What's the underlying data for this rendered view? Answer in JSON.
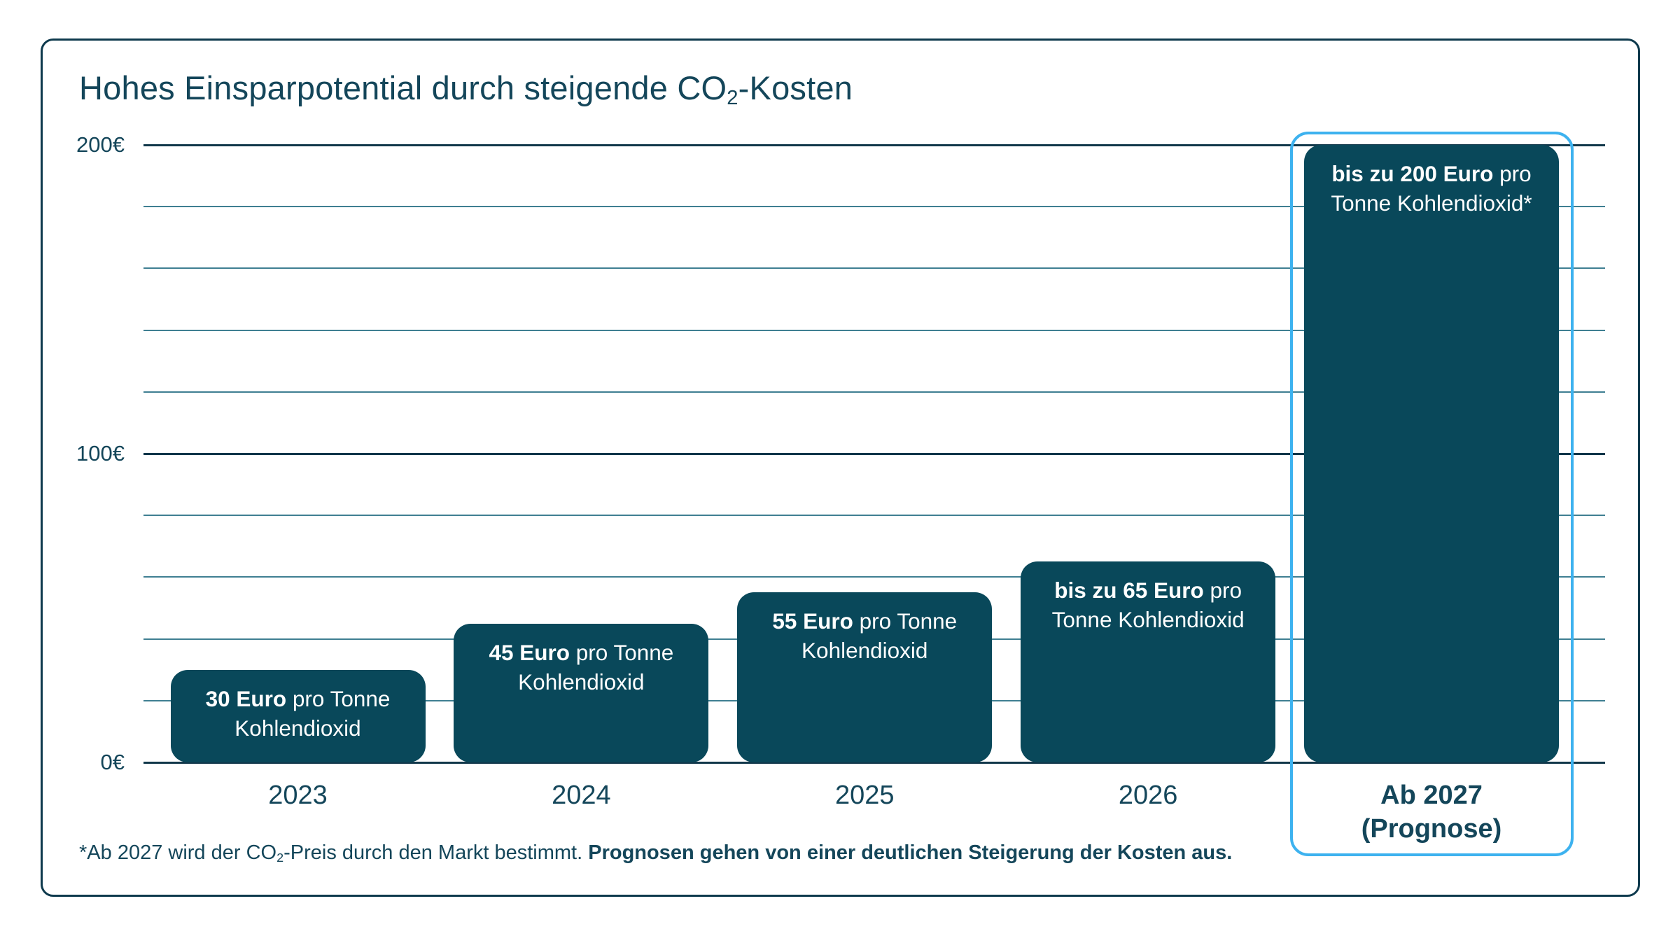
{
  "title": {
    "text_before_sub": "Hohes Einsparpotential durch steigende CO",
    "sub": "2",
    "text_after_sub": "-Kosten"
  },
  "chart_data": {
    "type": "bar",
    "categories": [
      "2023",
      "2024",
      "2025",
      "2026",
      "Ab 2027\n(Prognose)"
    ],
    "values": [
      30,
      45,
      55,
      65,
      200
    ],
    "bar_labels": [
      {
        "bold": "30 Euro",
        "rest": " pro Tonne Kohlendioxid"
      },
      {
        "bold": "45 Euro",
        "rest": " pro Tonne Kohlendioxid"
      },
      {
        "bold": "55 Euro",
        "rest": " pro Tonne Kohlendioxid"
      },
      {
        "bold": "bis zu 65 Euro",
        "rest": " pro Tonne Kohlendioxid"
      },
      {
        "bold": "bis zu 200 Euro",
        "rest": " pro Tonne Kohlendioxid*"
      }
    ],
    "ylim": [
      0,
      200
    ],
    "gridline_step": 20,
    "yticks": [
      {
        "value": 0,
        "label": "0€"
      },
      {
        "value": 100,
        "label": "100€"
      },
      {
        "value": 200,
        "label": "200€"
      }
    ],
    "highlight_index": 4,
    "grid": true,
    "legend": false,
    "xlabel": "",
    "ylabel": ""
  },
  "footnote": {
    "text_before_sub": "*Ab 2027 wird der CO",
    "sub": "2",
    "text_after_sub": "-Preis durch den Markt bestimmt. ",
    "bold_text": "Prognosen gehen von einer deutlichen Steigerung der Kosten aus."
  },
  "colors": {
    "bar_fill": "#09485a",
    "bar_label_text": "#ffffff",
    "highlight_border": "#3db2ef",
    "text_dark": "#14465a",
    "grid_major": "#11374a",
    "grid_minor": "#3f7f92",
    "card_border": "#0e3a4d",
    "background": "#ffffff"
  }
}
